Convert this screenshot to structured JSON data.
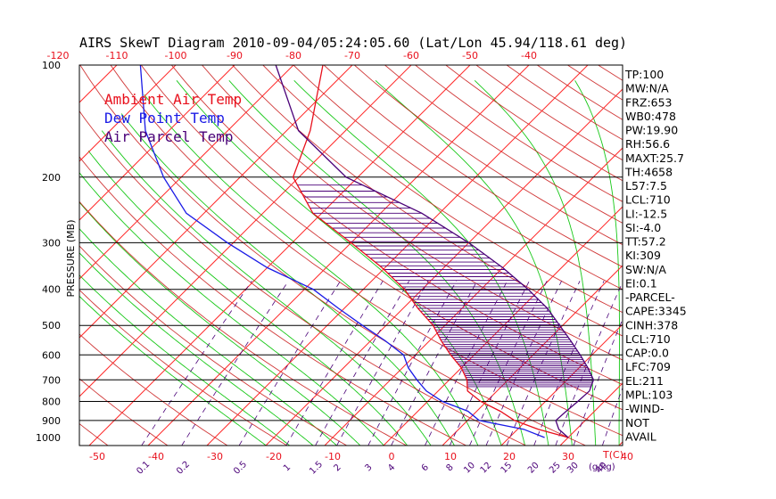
{
  "title": "AIRS SkewT Diagram 2010-09-04/05:24:05.60 (Lat/Lon 45.94/118.61 deg)",
  "colors": {
    "temp": "#e8101c",
    "dew": "#1a1ae6",
    "parcel": "#4a0078",
    "dry_adiabat": "#ff2a2a",
    "moist_adiabat": "#18c818",
    "mixing": "#4a0078",
    "isobar": "#000000"
  },
  "legend": {
    "ambient": "Ambient Air Temp",
    "dewpoint": "Dew Point Temp",
    "parcel": "Air Parcel Temp"
  },
  "indices": [
    "TP:100",
    "MW:N/A",
    "FRZ:653",
    "WB0:478",
    "PW:19.90",
    "RH:56.6",
    "MAXT:25.7",
    "TH:4658",
    "L57:7.5",
    "LCL:710",
    "LI:-12.5",
    "SI:-4.0",
    "TT:57.2",
    "KI:309",
    "SW:N/A",
    "EI:0.1",
    "-PARCEL-",
    "CAPE:3345",
    "CINH:378",
    "LCL:710",
    "CAP:0.0",
    "LFC:709",
    "EL:211",
    "MPL:103",
    "-WIND-",
    "NOT",
    "AVAIL"
  ],
  "chart_data": {
    "type": "skewt",
    "title": "AIRS SkewT Diagram 2010-09-04/05:24:05.60 (Lat/Lon 45.94/118.61 deg)",
    "ylabel": "PRESSURE (MB)",
    "xlabel": "T(C)",
    "mixing_label": "(g/kg)",
    "pressure_ticks": [
      100,
      200,
      300,
      400,
      500,
      600,
      700,
      800,
      900,
      1000
    ],
    "pressure_range": [
      100,
      1000
    ],
    "isobars": [
      200,
      300,
      400,
      500,
      600,
      700,
      800,
      900
    ],
    "bottom_temp_ticks": [
      -50,
      -40,
      -30,
      -20,
      -10,
      0,
      10,
      20,
      30,
      40
    ],
    "top_temp_ticks": [
      -120,
      -110,
      -100,
      -90,
      -80,
      -70,
      -60,
      -50,
      -40
    ],
    "mixing_ratio_ticks": [
      "0.1",
      "0.2",
      "0.5",
      "1",
      "1.5",
      "2",
      "3",
      "4",
      "6",
      "8",
      "10",
      "12",
      "15",
      "20",
      "25",
      "30",
      "40"
    ],
    "mixing_ratio_values": [
      0.1,
      0.2,
      0.5,
      1,
      1.5,
      2,
      3,
      4,
      6,
      8,
      10,
      12,
      15,
      20,
      25,
      30,
      40
    ],
    "series": [
      {
        "name": "Ambient Air Temp",
        "points": [
          [
            1000,
            30
          ],
          [
            950,
            23.5
          ],
          [
            900,
            18
          ],
          [
            850,
            14
          ],
          [
            800,
            9
          ],
          [
            750,
            5
          ],
          [
            700,
            3
          ],
          [
            650,
            0
          ],
          [
            600,
            -4
          ],
          [
            550,
            -8
          ],
          [
            500,
            -12
          ],
          [
            450,
            -17.5
          ],
          [
            400,
            -23
          ],
          [
            350,
            -30.5
          ],
          [
            300,
            -40
          ],
          [
            250,
            -51.5
          ],
          [
            200,
            -61
          ],
          [
            150,
            -66
          ],
          [
            100,
            -75
          ]
        ]
      },
      {
        "name": "Dew Point Temp",
        "points": [
          [
            1000,
            26
          ],
          [
            950,
            21
          ],
          [
            900,
            12
          ],
          [
            850,
            8.5
          ],
          [
            800,
            2.5
          ],
          [
            750,
            -2
          ],
          [
            700,
            -5.5
          ],
          [
            650,
            -9
          ],
          [
            600,
            -12
          ],
          [
            550,
            -17.5
          ],
          [
            500,
            -24
          ],
          [
            450,
            -31
          ],
          [
            400,
            -38.5
          ],
          [
            350,
            -50
          ],
          [
            300,
            -61
          ],
          [
            250,
            -73
          ],
          [
            200,
            -83
          ],
          [
            150,
            -94
          ],
          [
            100,
            -106
          ]
        ]
      },
      {
        "name": "Air Parcel Temp",
        "points": [
          [
            1000,
            30
          ],
          [
            950,
            27
          ],
          [
            900,
            25
          ],
          [
            850,
            25.2
          ],
          [
            800,
            25.5
          ],
          [
            750,
            25.7
          ],
          [
            700,
            24.5
          ],
          [
            650,
            21.5
          ],
          [
            600,
            18
          ],
          [
            550,
            14
          ],
          [
            500,
            9.5
          ],
          [
            450,
            4.5
          ],
          [
            400,
            -2
          ],
          [
            350,
            -10
          ],
          [
            300,
            -20
          ],
          [
            250,
            -33
          ],
          [
            200,
            -52
          ],
          [
            150,
            -68
          ],
          [
            100,
            -83
          ]
        ]
      }
    ]
  }
}
